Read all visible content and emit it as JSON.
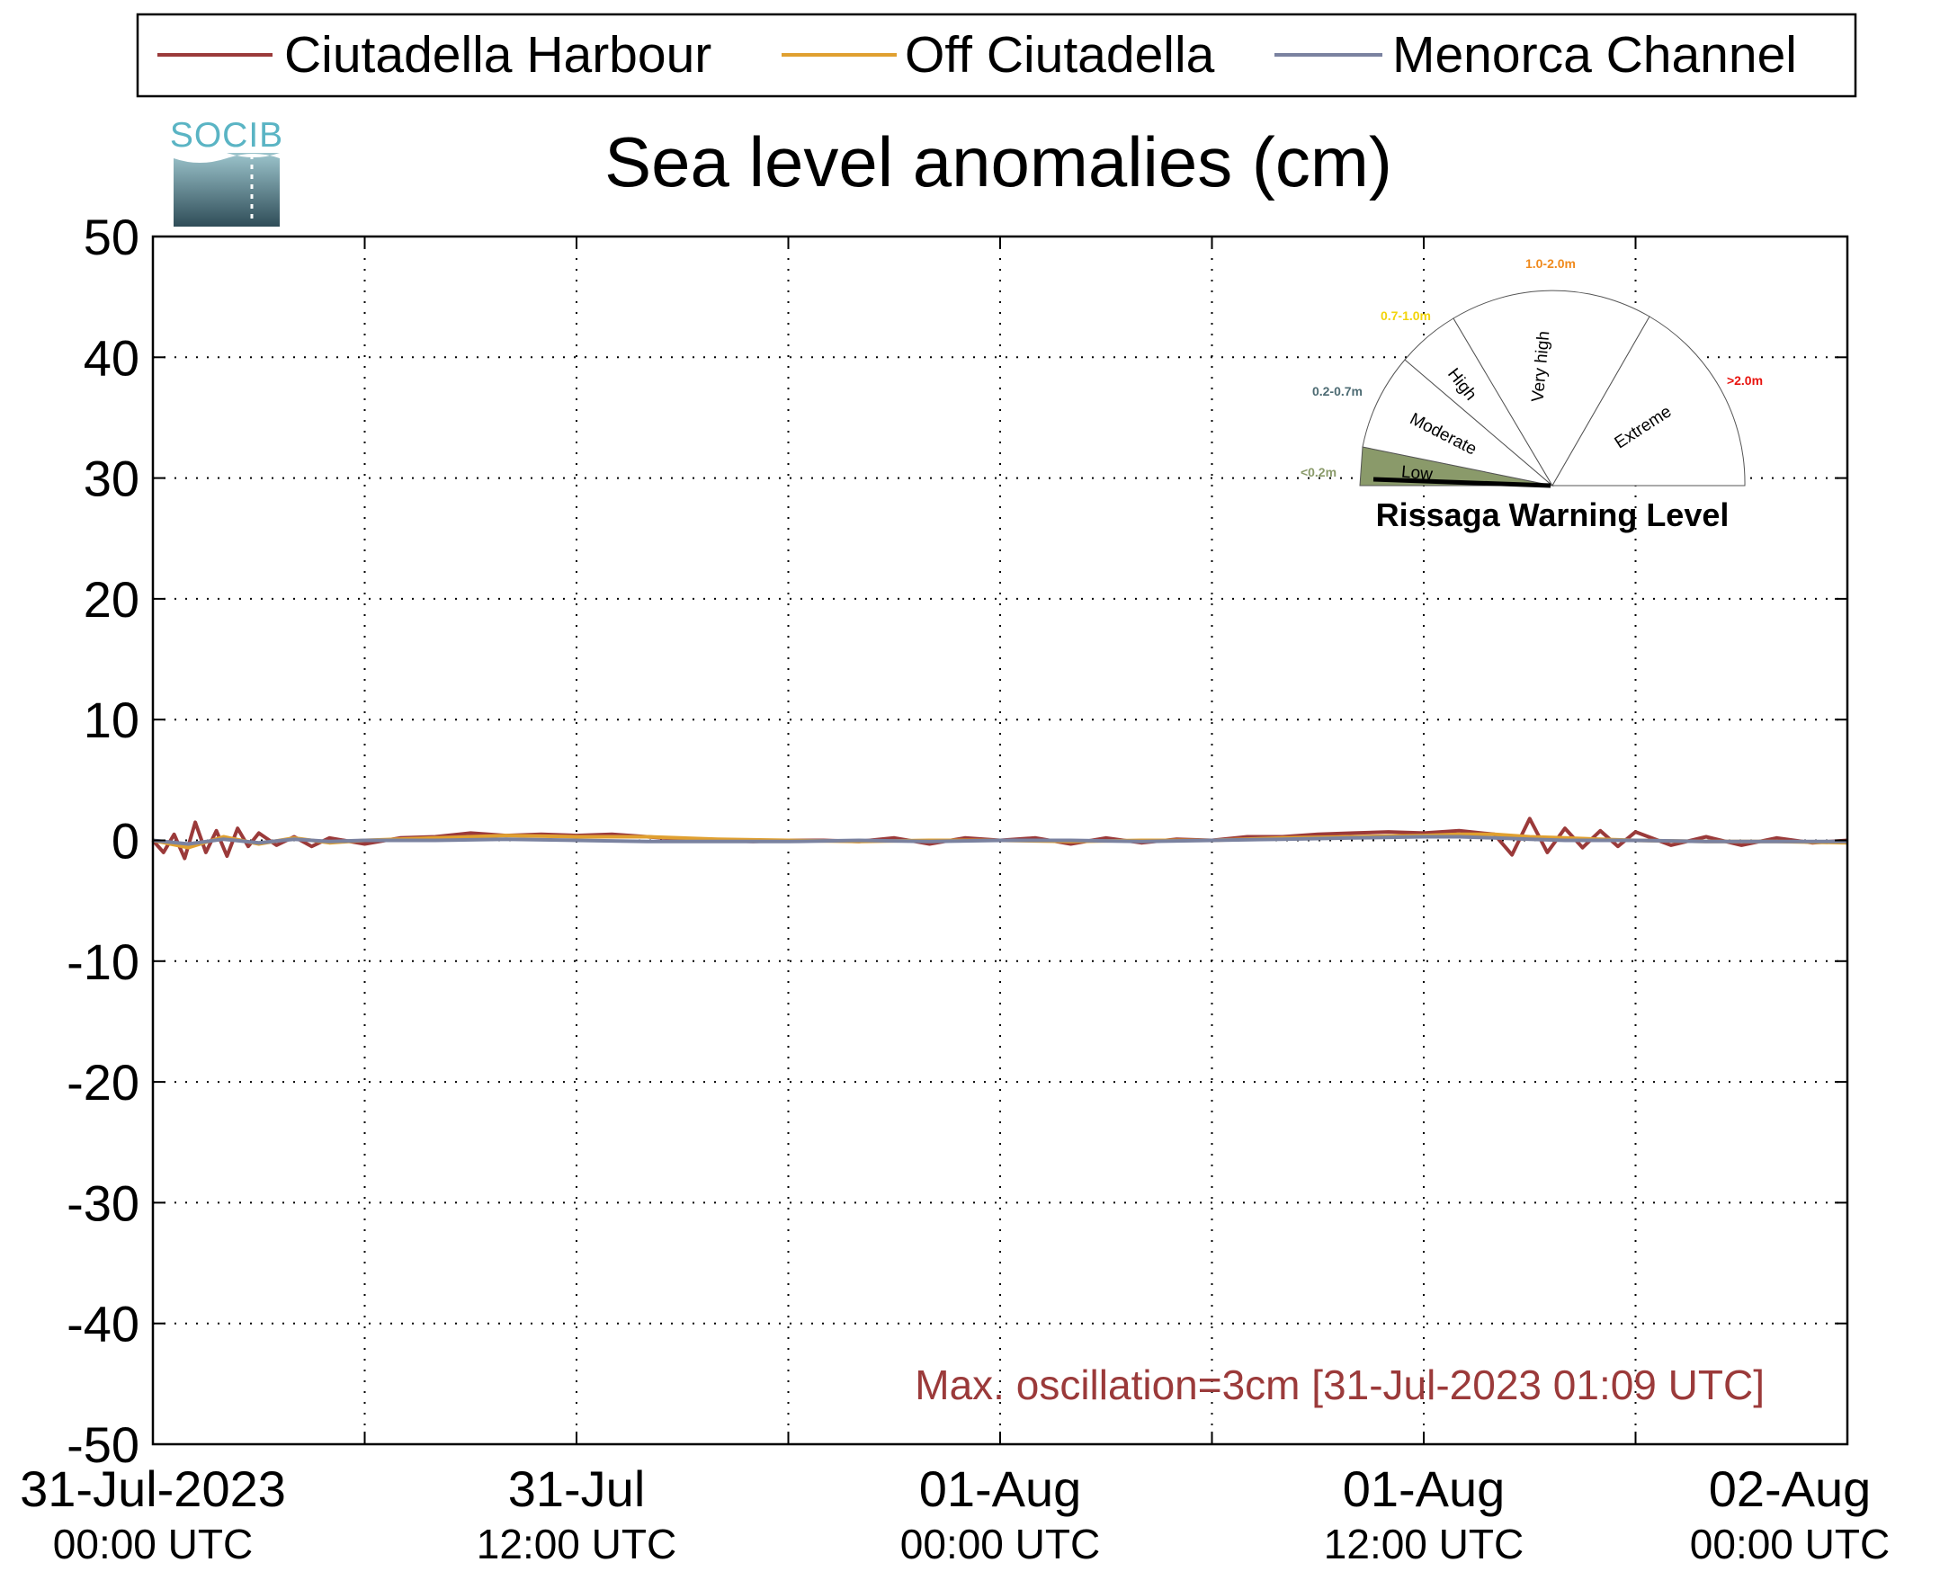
{
  "logo": {
    "text": "SOCIB"
  },
  "gauge": {
    "title": "Rissaga Warning Level",
    "current_level": "Low",
    "levels": [
      {
        "name": "Low",
        "range": "<0.2m",
        "color": "#8a9a6a"
      },
      {
        "name": "Moderate",
        "range": "0.2-0.7m",
        "color": "#4d6b73"
      },
      {
        "name": "High",
        "range": "0.7-1.0m",
        "color": "#f2d40a"
      },
      {
        "name": "Very high",
        "range": "1.0-2.0m",
        "color": "#f08a1c"
      },
      {
        "name": "Extreme",
        "range": ">2.0m",
        "color": "#e8140f"
      }
    ]
  },
  "chart_data": {
    "type": "line",
    "title": "Sea level anomalies (cm)",
    "xlabel": "",
    "ylabel": "",
    "ylim": [
      -50,
      50
    ],
    "yticks": [
      50,
      40,
      30,
      20,
      10,
      0,
      -10,
      -20,
      -30,
      -40,
      -50
    ],
    "xlim_hours": [
      0,
      48
    ],
    "xticks": [
      {
        "hour": 0,
        "date": "31-Jul-2023",
        "time": "00:00 UTC"
      },
      {
        "hour": 12,
        "date": "31-Jul",
        "time": "12:00 UTC"
      },
      {
        "hour": 24,
        "date": "01-Aug",
        "time": "00:00 UTC"
      },
      {
        "hour": 36,
        "date": "01-Aug",
        "time": "12:00 UTC"
      },
      {
        "hour": 48,
        "date": "02-Aug",
        "time": "00:00 UTC"
      }
    ],
    "grid": true,
    "legend_position": "top",
    "annotation": "Max. oscillation=3cm [31-Jul-2023 01:09 UTC]",
    "annotation_color": "#9b3a3a",
    "series": [
      {
        "name": "Ciutadella Harbour",
        "color": "#9b3a3a",
        "x": [
          0,
          0.3,
          0.6,
          0.9,
          1.2,
          1.5,
          1.8,
          2.1,
          2.4,
          2.7,
          3,
          3.5,
          4,
          4.5,
          5,
          6,
          7,
          8,
          9,
          10,
          11,
          12,
          13,
          14,
          15,
          16,
          17,
          18,
          19,
          20,
          21,
          22,
          23,
          24,
          25,
          26,
          27,
          28,
          29,
          30,
          31,
          32,
          33,
          34,
          35,
          36,
          37,
          38,
          38.5,
          39,
          39.5,
          40,
          40.5,
          41,
          41.5,
          42,
          43,
          44,
          45,
          46,
          47,
          48
        ],
        "y": [
          0,
          -1,
          0.5,
          -1.5,
          1.5,
          -1,
          0.8,
          -1.3,
          1,
          -0.5,
          0.6,
          -0.4,
          0.3,
          -0.5,
          0.2,
          -0.3,
          0.2,
          0.3,
          0.6,
          0.4,
          0.5,
          0.4,
          0.5,
          0.3,
          0.1,
          0,
          -0.1,
          0,
          0,
          -0.1,
          0.2,
          -0.3,
          0.2,
          0,
          0.2,
          -0.3,
          0.2,
          -0.2,
          0.1,
          0,
          0.3,
          0.3,
          0.5,
          0.6,
          0.7,
          0.6,
          0.8,
          0.5,
          -1.2,
          1.8,
          -1,
          1,
          -0.6,
          0.8,
          -0.5,
          0.7,
          -0.4,
          0.3,
          -0.4,
          0.2,
          -0.2,
          0
        ]
      },
      {
        "name": "Off Ciutadella",
        "color": "#e0a030",
        "x": [
          0,
          1,
          2,
          3,
          4,
          5,
          6,
          8,
          10,
          12,
          14,
          16,
          18,
          20,
          22,
          24,
          26,
          28,
          30,
          32,
          34,
          36,
          37,
          38,
          39,
          40,
          41,
          42,
          44,
          46,
          48
        ],
        "y": [
          0,
          -0.6,
          0.3,
          -0.3,
          0.2,
          -0.2,
          0,
          0.2,
          0.4,
          0.3,
          0.3,
          0.1,
          0,
          -0.1,
          0,
          0,
          -0.1,
          0,
          0,
          0.2,
          0.3,
          0.4,
          0.5,
          0.5,
          0.3,
          0.2,
          0.1,
          0,
          -0.1,
          -0.1,
          -0.2
        ]
      },
      {
        "name": "Menorca Channel",
        "color": "#7a82a0",
        "x": [
          0,
          1,
          2,
          3,
          4,
          5,
          6,
          8,
          10,
          12,
          14,
          16,
          18,
          20,
          22,
          24,
          26,
          28,
          30,
          32,
          34,
          36,
          37,
          38,
          39,
          40,
          42,
          44,
          46,
          48
        ],
        "y": [
          0,
          -0.3,
          0.1,
          -0.2,
          0.1,
          -0.1,
          0,
          0,
          0.1,
          0,
          -0.1,
          -0.1,
          -0.1,
          0,
          -0.1,
          0,
          0,
          -0.1,
          0,
          0.1,
          0.2,
          0.3,
          0.3,
          0.2,
          0.1,
          0,
          0,
          -0.1,
          -0.1,
          -0.1
        ]
      }
    ]
  }
}
